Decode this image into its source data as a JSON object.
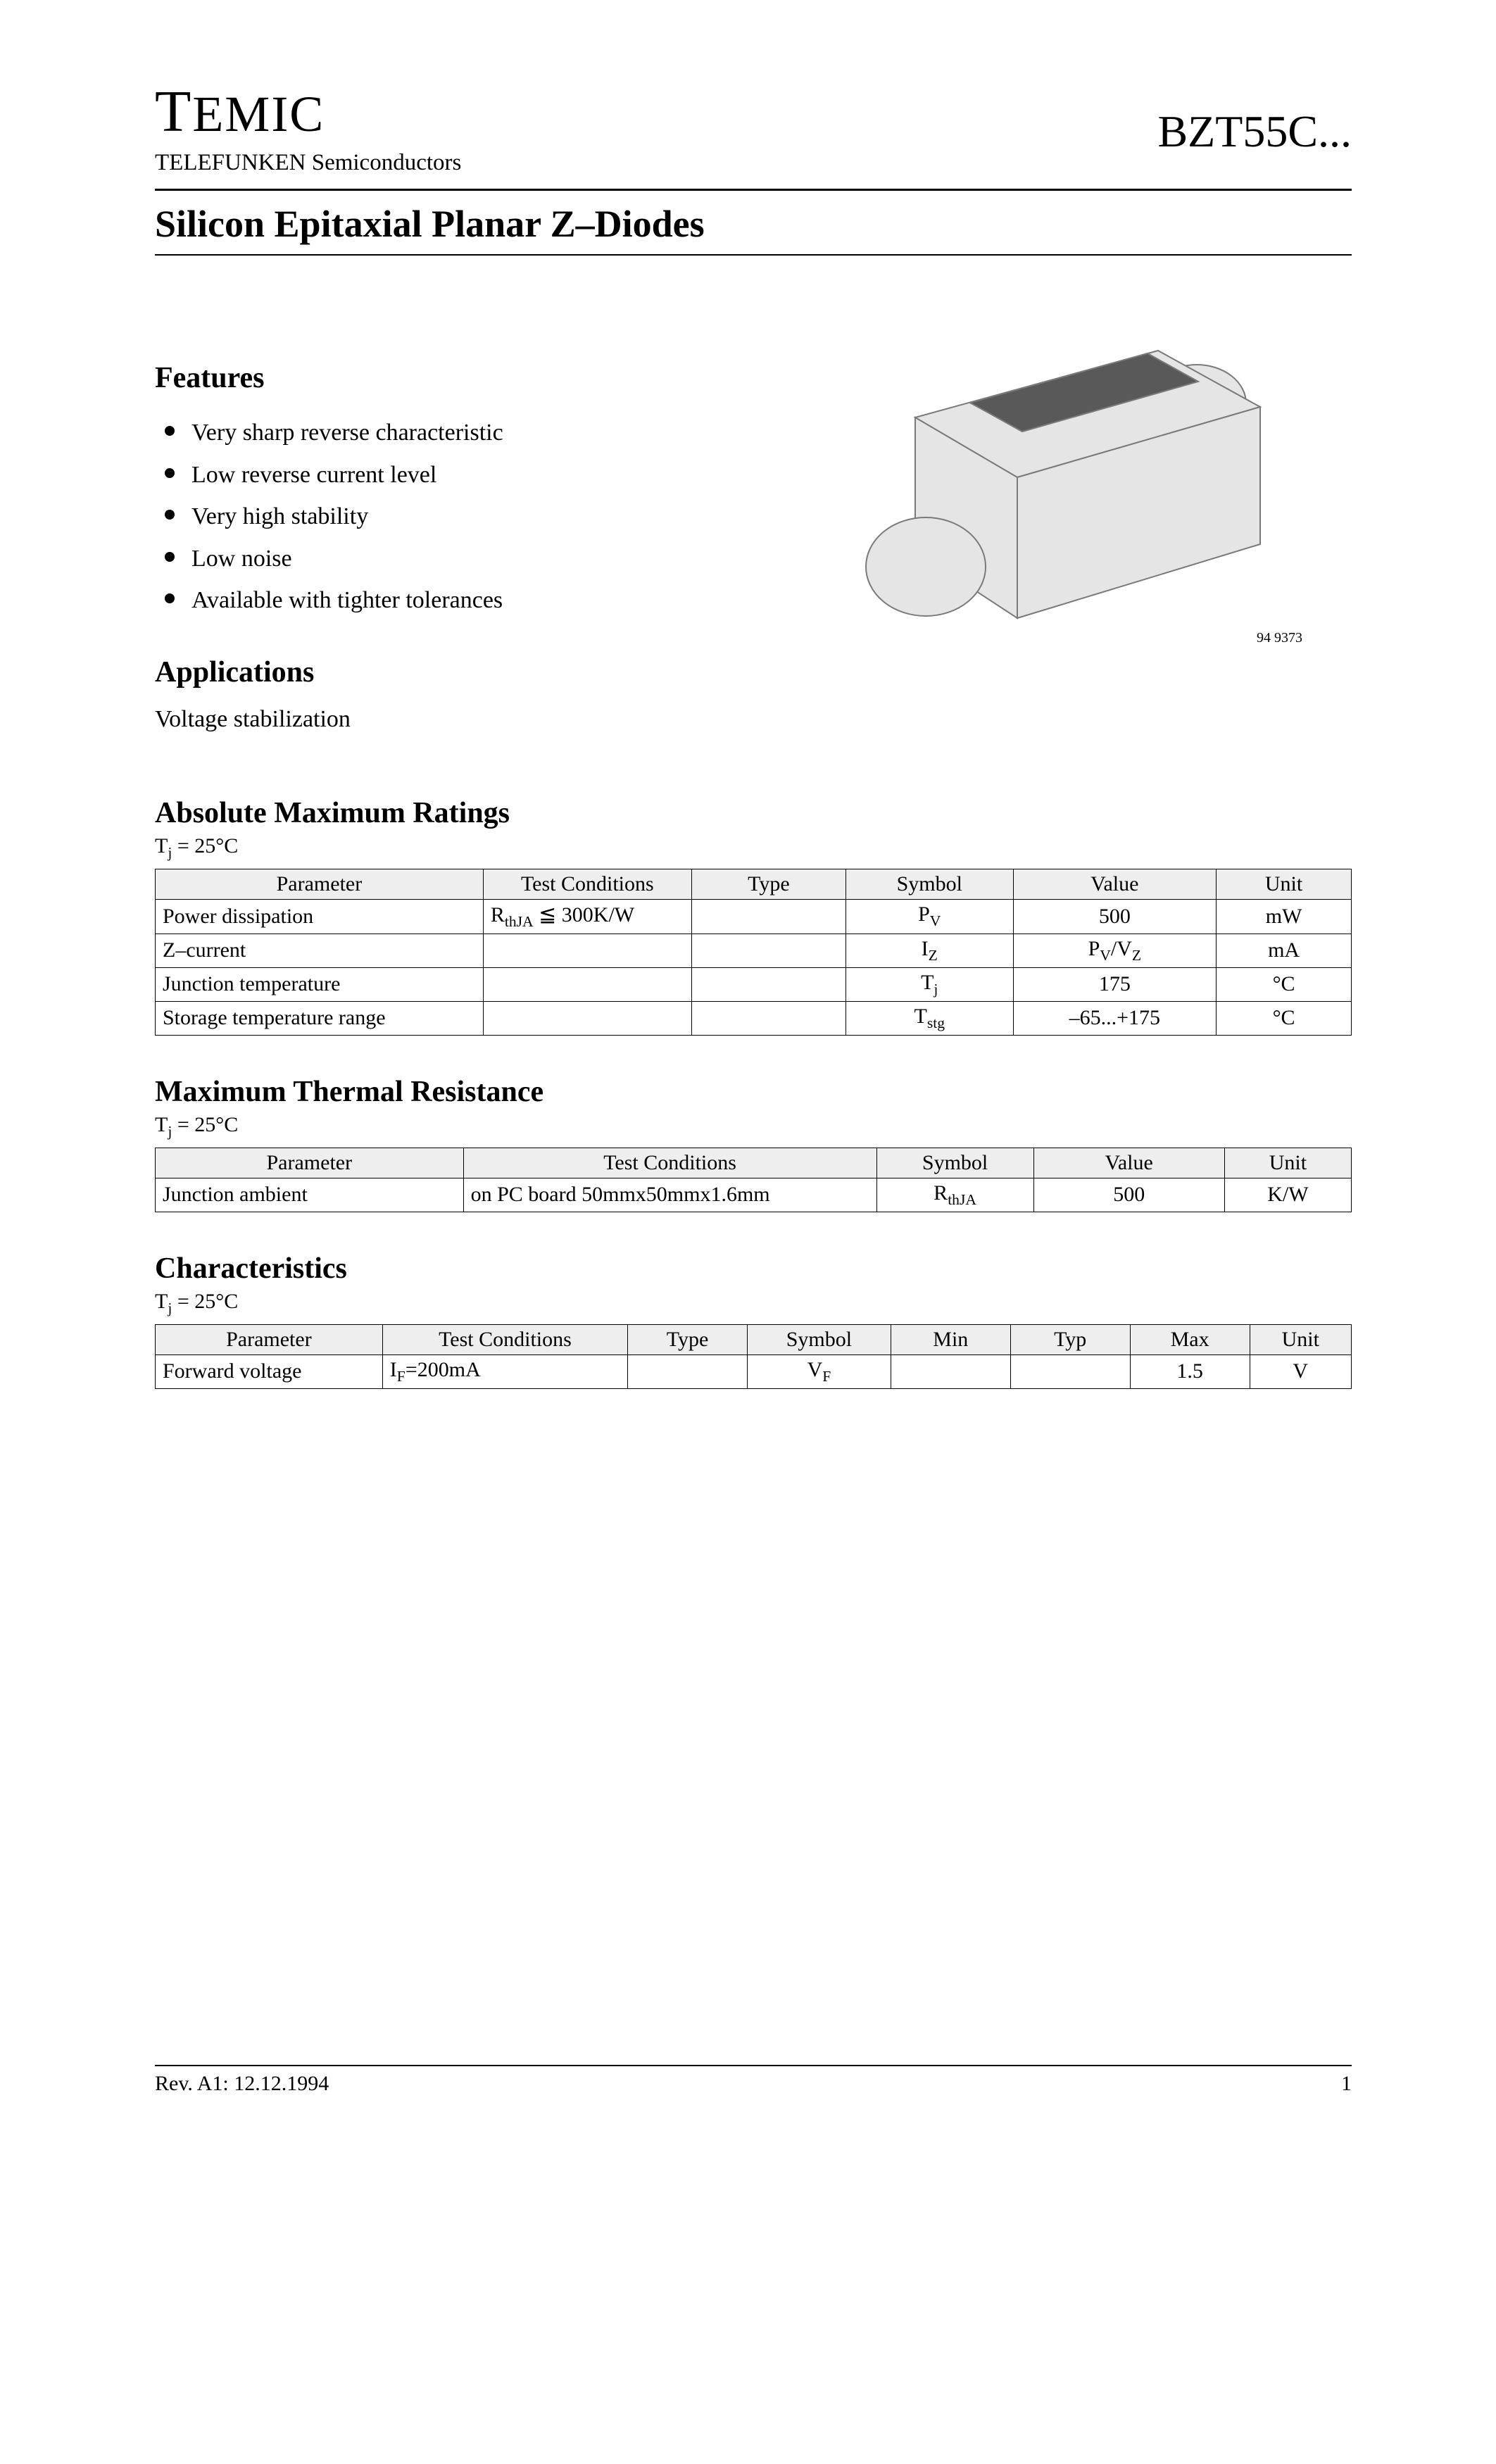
{
  "header": {
    "logo_big": "T",
    "logo_rest": "EMIC",
    "sublogo": "TELEFUNKEN Semiconductors",
    "part_number": "BZT55C..."
  },
  "title": "Silicon Epitaxial Planar Z–Diodes",
  "features": {
    "heading": "Features",
    "items": [
      "Very sharp reverse characteristic",
      "Low reverse current level",
      "Very high stability",
      "Low noise",
      "Available with tighter tolerances"
    ]
  },
  "applications": {
    "heading": "Applications",
    "text": "Voltage stabilization"
  },
  "package_image": {
    "ref": "94 9373",
    "body_fill": "#e5e5e5",
    "body_stroke": "#7a7a7a",
    "band_fill": "#595959"
  },
  "abs_max": {
    "heading": "Absolute Maximum Ratings",
    "condition": "Tj = 25°C",
    "columns": [
      "Parameter",
      "Test Conditions",
      "Type",
      "Symbol",
      "Value",
      "Unit"
    ],
    "col_widths_pct": [
      25.5,
      16.2,
      12.0,
      13.0,
      15.8,
      10.5
    ],
    "rows": [
      {
        "parameter": "Power dissipation",
        "test": "RthJA ≦ 300K/W",
        "type": "",
        "symbol": "P<sub>V</sub>",
        "value": "500",
        "unit": "mW"
      },
      {
        "parameter": "Z–current",
        "test": "",
        "type": "",
        "symbol": "I<sub>Z</sub>",
        "value": "P<sub>V</sub>/V<sub>Z</sub>",
        "unit": "mA"
      },
      {
        "parameter": "Junction temperature",
        "test": "",
        "type": "",
        "symbol": "T<sub>j</sub>",
        "value": "175",
        "unit": "°C"
      },
      {
        "parameter": "Storage temperature range",
        "test": "",
        "type": "",
        "symbol": "T<sub>stg</sub>",
        "value": "–65...+175",
        "unit": "°C"
      }
    ]
  },
  "thermal": {
    "heading": "Maximum Thermal Resistance",
    "condition": "Tj = 25°C",
    "columns": [
      "Parameter",
      "Test Conditions",
      "Symbol",
      "Value",
      "Unit"
    ],
    "col_widths_pct": [
      25.5,
      34.2,
      13.0,
      15.8,
      10.5
    ],
    "rows": [
      {
        "parameter": "Junction ambient",
        "test": "on PC board 50mmx50mmx1.6mm",
        "symbol": "R<sub>thJA</sub>",
        "value": "500",
        "unit": "K/W"
      }
    ]
  },
  "characteristics": {
    "heading": "Characteristics",
    "condition": "Tj = 25°C",
    "columns": [
      "Parameter",
      "Test Conditions",
      "Type",
      "Symbol",
      "Min",
      "Typ",
      "Max",
      "Unit"
    ],
    "col_widths_pct": [
      19,
      20.5,
      10,
      12,
      10,
      10,
      10,
      8.5
    ],
    "rows": [
      {
        "parameter": "Forward voltage",
        "test": "IF=200mA",
        "type": "",
        "symbol": "V<sub>F</sub>",
        "min": "",
        "typ": "",
        "max": "1.5",
        "unit": "V"
      }
    ]
  },
  "footer": {
    "rev": "Rev. A1: 12.12.1994",
    "page": "1"
  }
}
